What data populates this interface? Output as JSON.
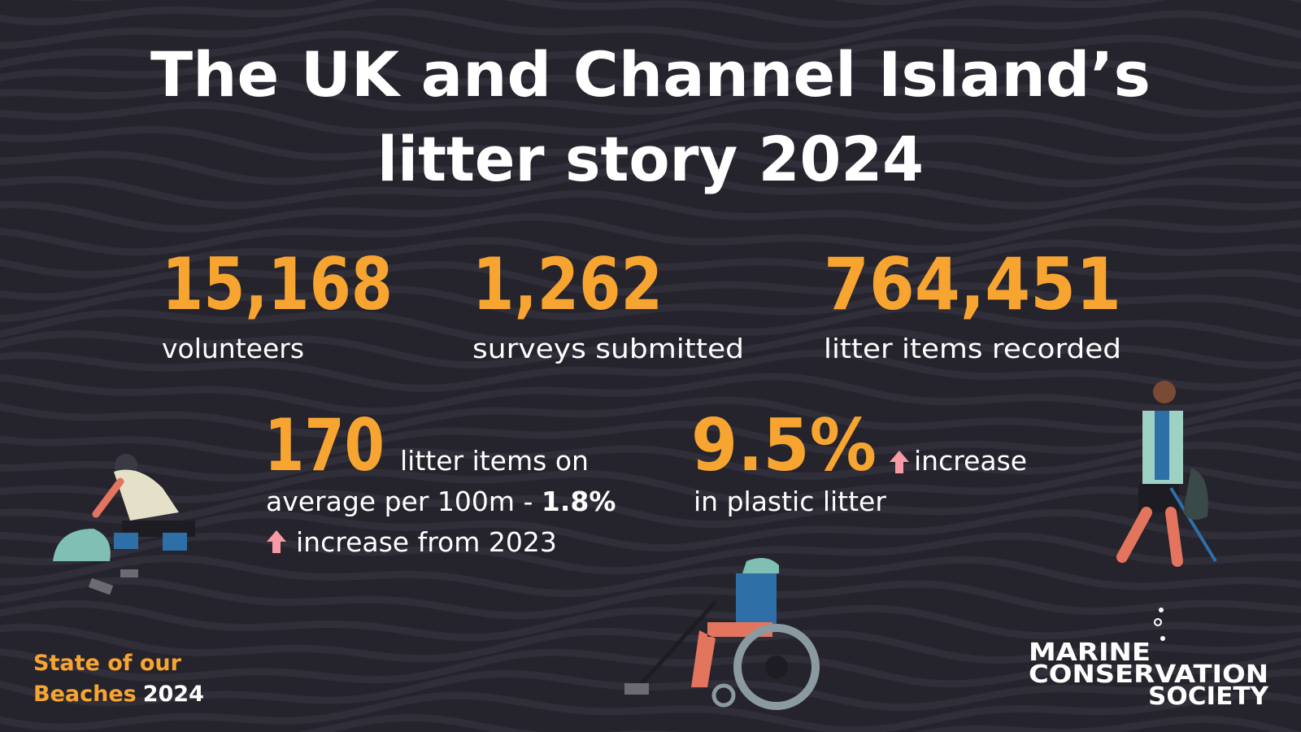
{
  "title": {
    "line1": "The UK and Channel Island’s",
    "line2": "litter story 2024"
  },
  "stats": [
    {
      "value": "15,168",
      "label": "volunteers"
    },
    {
      "value": "1,262",
      "label": "surveys submitted"
    },
    {
      "value": "764,451",
      "label": "litter items recorded"
    }
  ],
  "highlights": [
    {
      "value": "170",
      "line1": "litter items on",
      "line2": "average per 100m - ",
      "change": "1.8%",
      "line3": "increase from 2023"
    },
    {
      "value": "9.5%",
      "line1": "increase",
      "line2": "in plastic litter"
    }
  ],
  "footer": {
    "line1": "State of our",
    "line2": "Beaches",
    "year": "2024"
  },
  "logo": {
    "line1": "MARINE",
    "line2": "CONSERVATION",
    "line3": "SOCIETY"
  }
}
